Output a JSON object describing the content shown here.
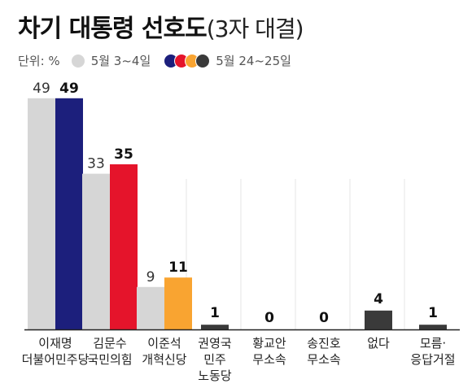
{
  "title": {
    "main": "차기 대통령 선호도",
    "sub": "(3자 대결)"
  },
  "legend": {
    "unit": "단위: %",
    "series_a_label": "5월 3~4일",
    "series_b_label": "5월 24~25일"
  },
  "colors": {
    "series_a": "#d6d6d6",
    "candidates": [
      "#1c1f7c",
      "#e5142b",
      "#f9a431",
      "#3a3a3a",
      "#3a3a3a",
      "#3a3a3a",
      "#3a3a3a",
      "#3a3a3a"
    ],
    "legend_dots": [
      "#1c1f7c",
      "#e5142b",
      "#f9a431",
      "#3a3a3a"
    ]
  },
  "chart_data": {
    "type": "bar",
    "categories": [
      [
        "이재명",
        "더불어민주당"
      ],
      [
        "김문수",
        "국민의힘"
      ],
      [
        "이준석",
        "개혁신당"
      ],
      [
        "권영국",
        "민주",
        "노동당"
      ],
      [
        "황교안",
        "무소속"
      ],
      [
        "송진호",
        "무소속"
      ],
      [
        "없다"
      ],
      [
        "모름·",
        "응답거절"
      ]
    ],
    "series": [
      {
        "name": "5월 3~4일",
        "values": [
          49,
          33,
          9,
          null,
          null,
          null,
          null,
          null
        ]
      },
      {
        "name": "5월 24~25일",
        "values": [
          49,
          35,
          11,
          1,
          0,
          0,
          4,
          1
        ]
      }
    ],
    "ylim": [
      0,
      55
    ],
    "grid": false
  }
}
